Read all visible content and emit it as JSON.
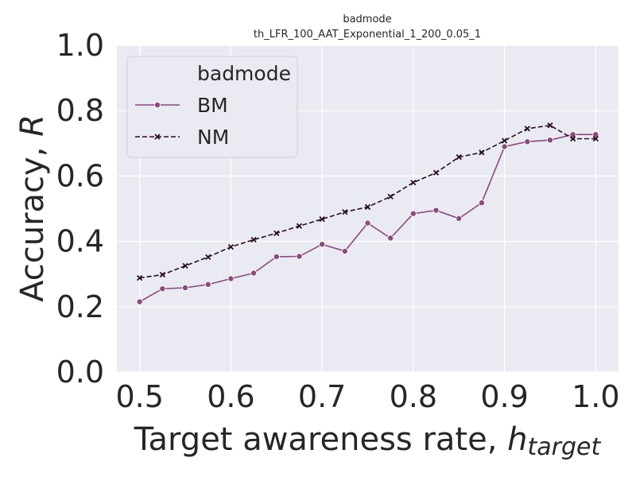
{
  "chart_data": {
    "type": "line",
    "title_line1": "badmode",
    "title_line2": "th_LFR_100_AAT_Exponential_1_200_0.05_1",
    "xlabel_prefix": "Target awareness rate, ",
    "xlabel_var": "h",
    "xlabel_sub": "target",
    "ylabel_prefix": "Accuracy, ",
    "ylabel_var": "R",
    "xlim": [
      0.475,
      1.025
    ],
    "ylim": [
      0.0,
      1.0
    ],
    "x_ticks": [
      "0.5",
      "0.6",
      "0.7",
      "0.8",
      "0.9",
      "1.0"
    ],
    "y_ticks": [
      "0.0",
      "0.2",
      "0.4",
      "0.6",
      "0.8",
      "1.0"
    ],
    "x_tick_values": [
      0.5,
      0.6,
      0.7,
      0.8,
      0.9,
      1.0
    ],
    "y_tick_values": [
      0.0,
      0.2,
      0.4,
      0.6,
      0.8,
      1.0
    ],
    "grid": true,
    "legend": {
      "title": "badmode",
      "placement": "top-left"
    },
    "x": [
      0.5,
      0.525,
      0.55,
      0.575,
      0.6,
      0.625,
      0.65,
      0.675,
      0.7,
      0.725,
      0.75,
      0.775,
      0.8,
      0.825,
      0.85,
      0.875,
      0.9,
      0.925,
      0.95,
      0.975,
      1.0
    ],
    "series": [
      {
        "name": "BM",
        "color": "#8b4a7c",
        "marker": "circle",
        "dash": "solid",
        "values": [
          0.215,
          0.255,
          0.258,
          0.268,
          0.286,
          0.303,
          0.353,
          0.354,
          0.391,
          0.37,
          0.456,
          0.41,
          0.485,
          0.495,
          0.47,
          0.518,
          0.69,
          0.705,
          0.71,
          0.727,
          0.727
        ]
      },
      {
        "name": "NM",
        "color": "#2a0f22",
        "marker": "x",
        "dash": "dashed",
        "values": [
          0.288,
          0.298,
          0.325,
          0.352,
          0.383,
          0.405,
          0.425,
          0.447,
          0.468,
          0.49,
          0.505,
          0.537,
          0.58,
          0.61,
          0.658,
          0.672,
          0.708,
          0.745,
          0.755,
          0.714,
          0.714
        ]
      }
    ]
  }
}
